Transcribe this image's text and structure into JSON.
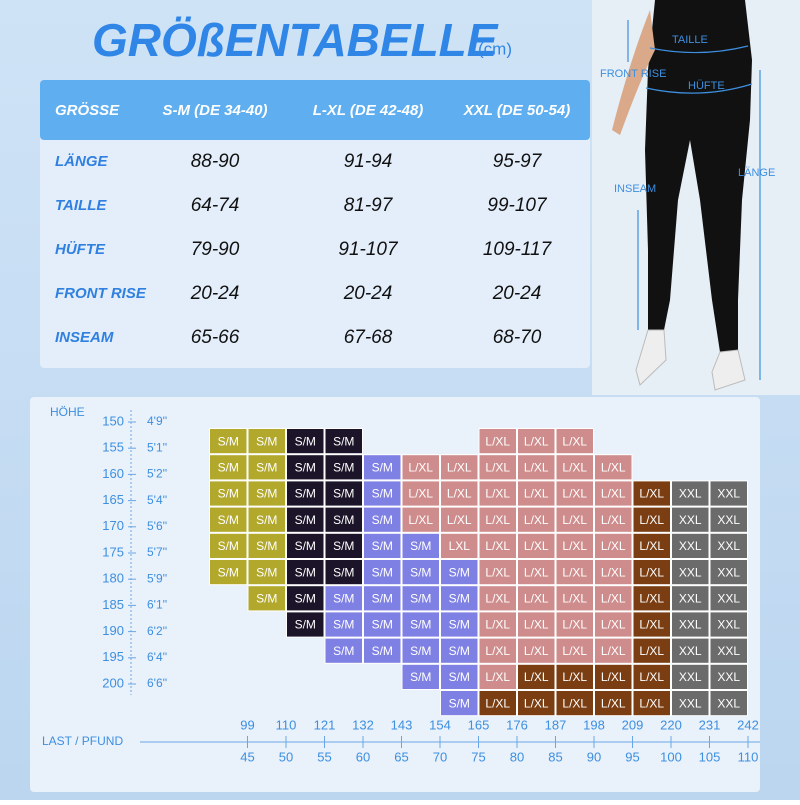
{
  "title": "GRÖßENTABELLE",
  "title_unit": "(cm)",
  "table": {
    "header": [
      "GRÖSSE",
      "S-M (DE 34-40)",
      "L-XL (DE 42-48)",
      "XXL (DE 50-54)"
    ],
    "rows": [
      [
        "LÄNGE",
        "88-90",
        "91-94",
        "95-97"
      ],
      [
        "TAILLE",
        "64-74",
        "81-97",
        "99-107"
      ],
      [
        "HÜFTE",
        "79-90",
        "91-107",
        "109-117"
      ],
      [
        "FRONT RISE",
        "20-24",
        "20-24",
        "20-24"
      ],
      [
        "INSEAM",
        "65-66",
        "67-68",
        "68-70"
      ]
    ]
  },
  "photo_labels": {
    "waist": "TAILLE",
    "front_rise": "FRONT RISE",
    "hip": "HÜFTE",
    "inseam": "INSEAM",
    "length": "LÄNGE"
  },
  "grid": {
    "height_title": "HÖHE",
    "weight_title": "LAST / PFUND",
    "heights_cm": [
      150,
      155,
      160,
      165,
      170,
      175,
      180,
      185,
      190,
      195,
      200
    ],
    "heights_ft": [
      "4'9''",
      "5'1''",
      "5'2''",
      "5'4''",
      "5'6''",
      "5'7''",
      "5'9''",
      "6'1''",
      "6'2''",
      "6'4''",
      "6'6''"
    ],
    "weights_lbs": [
      99,
      110,
      121,
      132,
      143,
      154,
      165,
      176,
      187,
      198,
      209,
      220,
      231,
      242
    ],
    "weights_kg": [
      45,
      50,
      55,
      60,
      65,
      70,
      75,
      80,
      85,
      90,
      95,
      100,
      105,
      110
    ],
    "rows": [
      [
        {
          "label": "S/M",
          "color": "#b2a82c"
        },
        {
          "label": "S/M",
          "color": "#b2a82c"
        },
        {
          "label": "S/M",
          "color": "#1c1428"
        },
        {
          "label": "S/M",
          "color": "#1c1428"
        },
        null,
        null,
        null,
        {
          "label": "L/XL",
          "color": "#cf8c8c"
        },
        {
          "label": "L/XL",
          "color": "#cf8c8c"
        },
        {
          "label": "L/XL",
          "color": "#cf8c8c"
        },
        null,
        null,
        null,
        null
      ],
      [
        {
          "label": "S/M",
          "color": "#b2a82c"
        },
        {
          "label": "S/M",
          "color": "#b2a82c"
        },
        {
          "label": "S/M",
          "color": "#1c1428"
        },
        {
          "label": "S/M",
          "color": "#1c1428"
        },
        {
          "label": "S/M",
          "color": "#7f80e3"
        },
        {
          "label": "L/XL",
          "color": "#cf8c8c"
        },
        {
          "label": "L/XL",
          "color": "#cf8c8c"
        },
        {
          "label": "L/XL",
          "color": "#cf8c8c"
        },
        {
          "label": "L/XL",
          "color": "#cf8c8c"
        },
        {
          "label": "L/XL",
          "color": "#cf8c8c"
        },
        {
          "label": "L/XL",
          "color": "#cf8c8c"
        },
        null,
        null,
        null
      ],
      [
        {
          "label": "S/M",
          "color": "#b2a82c"
        },
        {
          "label": "S/M",
          "color": "#b2a82c"
        },
        {
          "label": "S/M",
          "color": "#1c1428"
        },
        {
          "label": "S/M",
          "color": "#1c1428"
        },
        {
          "label": "S/M",
          "color": "#7f80e3"
        },
        {
          "label": "L/XL",
          "color": "#cf8c8c"
        },
        {
          "label": "L/XL",
          "color": "#cf8c8c"
        },
        {
          "label": "L/XL",
          "color": "#cf8c8c"
        },
        {
          "label": "L/XL",
          "color": "#cf8c8c"
        },
        {
          "label": "L/XL",
          "color": "#cf8c8c"
        },
        {
          "label": "L/XL",
          "color": "#cf8c8c"
        },
        {
          "label": "L/XL",
          "color": "#7a3e12"
        },
        {
          "label": "XXL",
          "color": "#6b6b6b"
        },
        {
          "label": "XXL",
          "color": "#6b6b6b"
        }
      ],
      [
        {
          "label": "S/M",
          "color": "#b2a82c"
        },
        {
          "label": "S/M",
          "color": "#b2a82c"
        },
        {
          "label": "S/M",
          "color": "#1c1428"
        },
        {
          "label": "S/M",
          "color": "#1c1428"
        },
        {
          "label": "S/M",
          "color": "#7f80e3"
        },
        {
          "label": "L/XL",
          "color": "#cf8c8c"
        },
        {
          "label": "L/XL",
          "color": "#cf8c8c"
        },
        {
          "label": "L/XL",
          "color": "#cf8c8c"
        },
        {
          "label": "L/XL",
          "color": "#cf8c8c"
        },
        {
          "label": "L/XL",
          "color": "#cf8c8c"
        },
        {
          "label": "L/XL",
          "color": "#cf8c8c"
        },
        {
          "label": "L/XL",
          "color": "#7a3e12"
        },
        {
          "label": "XXL",
          "color": "#6b6b6b"
        },
        {
          "label": "XXL",
          "color": "#6b6b6b"
        }
      ],
      [
        {
          "label": "S/M",
          "color": "#b2a82c"
        },
        {
          "label": "S/M",
          "color": "#b2a82c"
        },
        {
          "label": "S/M",
          "color": "#1c1428"
        },
        {
          "label": "S/M",
          "color": "#1c1428"
        },
        {
          "label": "S/M",
          "color": "#7f80e3"
        },
        {
          "label": "S/M",
          "color": "#7f80e3"
        },
        {
          "label": "LXL",
          "color": "#cf8c8c"
        },
        {
          "label": "L/XL",
          "color": "#cf8c8c"
        },
        {
          "label": "L/XL",
          "color": "#cf8c8c"
        },
        {
          "label": "L/XL",
          "color": "#cf8c8c"
        },
        {
          "label": "L/XL",
          "color": "#cf8c8c"
        },
        {
          "label": "L/XL",
          "color": "#7a3e12"
        },
        {
          "label": "XXL",
          "color": "#6b6b6b"
        },
        {
          "label": "XXL",
          "color": "#6b6b6b"
        }
      ],
      [
        {
          "label": "S/M",
          "color": "#b2a82c"
        },
        {
          "label": "S/M",
          "color": "#b2a82c"
        },
        {
          "label": "S/M",
          "color": "#1c1428"
        },
        {
          "label": "S/M",
          "color": "#1c1428"
        },
        {
          "label": "S/M",
          "color": "#7f80e3"
        },
        {
          "label": "S/M",
          "color": "#7f80e3"
        },
        {
          "label": "S/M",
          "color": "#7f80e3"
        },
        {
          "label": "L/XL",
          "color": "#cf8c8c"
        },
        {
          "label": "L/XL",
          "color": "#cf8c8c"
        },
        {
          "label": "L/XL",
          "color": "#cf8c8c"
        },
        {
          "label": "L/XL",
          "color": "#cf8c8c"
        },
        {
          "label": "L/XL",
          "color": "#7a3e12"
        },
        {
          "label": "XXL",
          "color": "#6b6b6b"
        },
        {
          "label": "XXL",
          "color": "#6b6b6b"
        }
      ],
      [
        null,
        {
          "label": "S/M",
          "color": "#b2a82c"
        },
        {
          "label": "S/M",
          "color": "#1c1428"
        },
        {
          "label": "S/M",
          "color": "#7f80e3"
        },
        {
          "label": "S/M",
          "color": "#7f80e3"
        },
        {
          "label": "S/M",
          "color": "#7f80e3"
        },
        {
          "label": "S/M",
          "color": "#7f80e3"
        },
        {
          "label": "L/XL",
          "color": "#cf8c8c"
        },
        {
          "label": "L/XL",
          "color": "#cf8c8c"
        },
        {
          "label": "L/XL",
          "color": "#cf8c8c"
        },
        {
          "label": "L/XL",
          "color": "#cf8c8c"
        },
        {
          "label": "L/XL",
          "color": "#7a3e12"
        },
        {
          "label": "XXL",
          "color": "#6b6b6b"
        },
        {
          "label": "XXL",
          "color": "#6b6b6b"
        }
      ],
      [
        null,
        null,
        {
          "label": "S/M",
          "color": "#1c1428"
        },
        {
          "label": "S/M",
          "color": "#7f80e3"
        },
        {
          "label": "S/M",
          "color": "#7f80e3"
        },
        {
          "label": "S/M",
          "color": "#7f80e3"
        },
        {
          "label": "S/M",
          "color": "#7f80e3"
        },
        {
          "label": "L/XL",
          "color": "#cf8c8c"
        },
        {
          "label": "L/XL",
          "color": "#cf8c8c"
        },
        {
          "label": "L/XL",
          "color": "#cf8c8c"
        },
        {
          "label": "L/XL",
          "color": "#cf8c8c"
        },
        {
          "label": "L/XL",
          "color": "#7a3e12"
        },
        {
          "label": "XXL",
          "color": "#6b6b6b"
        },
        {
          "label": "XXL",
          "color": "#6b6b6b"
        }
      ],
      [
        null,
        null,
        null,
        {
          "label": "S/M",
          "color": "#7f80e3"
        },
        {
          "label": "S/M",
          "color": "#7f80e3"
        },
        {
          "label": "S/M",
          "color": "#7f80e3"
        },
        {
          "label": "S/M",
          "color": "#7f80e3"
        },
        {
          "label": "L/XL",
          "color": "#cf8c8c"
        },
        {
          "label": "L/XL",
          "color": "#cf8c8c"
        },
        {
          "label": "L/XL",
          "color": "#cf8c8c"
        },
        {
          "label": "L/XL",
          "color": "#cf8c8c"
        },
        {
          "label": "L/XL",
          "color": "#7a3e12"
        },
        {
          "label": "XXL",
          "color": "#6b6b6b"
        },
        {
          "label": "XXL",
          "color": "#6b6b6b"
        }
      ],
      [
        null,
        null,
        null,
        null,
        null,
        {
          "label": "S/M",
          "color": "#7f80e3"
        },
        {
          "label": "S/M",
          "color": "#7f80e3"
        },
        {
          "label": "L/XL",
          "color": "#cf8c8c"
        },
        {
          "label": "L/XL",
          "color": "#7a3e12"
        },
        {
          "label": "L/XL",
          "color": "#7a3e12"
        },
        {
          "label": "L/XL",
          "color": "#7a3e12"
        },
        {
          "label": "L/XL",
          "color": "#7a3e12"
        },
        {
          "label": "XXL",
          "color": "#6b6b6b"
        },
        {
          "label": "XXL",
          "color": "#6b6b6b"
        }
      ],
      [
        null,
        null,
        null,
        null,
        null,
        null,
        {
          "label": "S/M",
          "color": "#7f80e3"
        },
        {
          "label": "L/XL",
          "color": "#7a3e12"
        },
        {
          "label": "L/XL",
          "color": "#7a3e12"
        },
        {
          "label": "L/XL",
          "color": "#7a3e12"
        },
        {
          "label": "L/XL",
          "color": "#7a3e12"
        },
        {
          "label": "L/XL",
          "color": "#7a3e12"
        },
        {
          "label": "XXL",
          "color": "#6b6b6b"
        },
        {
          "label": "XXL",
          "color": "#6b6b6b"
        }
      ]
    ]
  }
}
